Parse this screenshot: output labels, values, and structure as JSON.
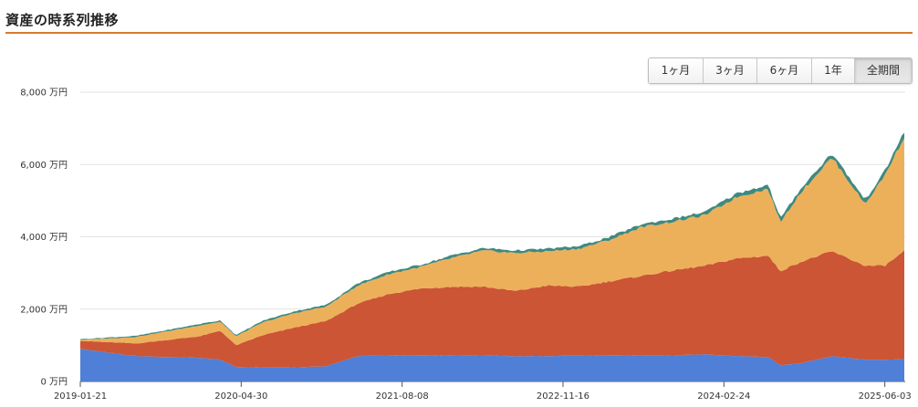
{
  "header": {
    "title": "資産の時系列推移"
  },
  "range_buttons": [
    {
      "label": "1ヶ月",
      "active": false
    },
    {
      "label": "3ヶ月",
      "active": false
    },
    {
      "label": "6ヶ月",
      "active": false
    },
    {
      "label": "1年",
      "active": false
    },
    {
      "label": "全期間",
      "active": true
    }
  ],
  "colors": {
    "accent_line": "#d97a2b",
    "series_blue": "#4f7fd6",
    "series_red": "#cc5535",
    "series_orange": "#edb05a",
    "series_teal": "#3f8a80"
  },
  "chart_data": {
    "type": "area",
    "stacked": true,
    "title": "",
    "xlabel": "",
    "ylabel": "",
    "y_unit": "万円",
    "ylim": [
      0,
      8000
    ],
    "yticks": [
      0,
      2000,
      4000,
      6000,
      8000
    ],
    "ytick_labels": [
      "0 万円",
      "2,000 万円",
      "4,000 万円",
      "6,000 万円",
      "8,000 万円"
    ],
    "xtick_labels": [
      "2019-01-21",
      "2020-04-30",
      "2021-08-08",
      "2022-11-16",
      "2024-02-24",
      "2025-06-03"
    ],
    "xlim": [
      "2019-01-21",
      "2025-08-01"
    ],
    "grid": true,
    "x": [
      "2019-01-21",
      "2019-07-01",
      "2020-01-01",
      "2020-03-01",
      "2020-04-15",
      "2020-07-01",
      "2020-10-01",
      "2021-01-01",
      "2021-04-01",
      "2021-07-01",
      "2021-10-01",
      "2022-01-01",
      "2022-04-01",
      "2022-07-01",
      "2022-10-01",
      "2023-01-01",
      "2023-04-01",
      "2023-07-01",
      "2023-10-01",
      "2024-01-01",
      "2024-04-01",
      "2024-07-01",
      "2024-08-05",
      "2024-10-01",
      "2025-01-01",
      "2025-04-07",
      "2025-06-03",
      "2025-08-01"
    ],
    "series": [
      {
        "color": "#4f7fd6",
        "values": [
          900,
          700,
          650,
          600,
          400,
          380,
          390,
          420,
          700,
          720,
          720,
          720,
          720,
          700,
          700,
          720,
          720,
          720,
          720,
          750,
          700,
          680,
          450,
          500,
          700,
          600,
          600,
          620
        ]
      },
      {
        "color": "#cc5535",
        "values": [
          220,
          350,
          600,
          800,
          600,
          900,
          1100,
          1250,
          1450,
          1700,
          1850,
          1900,
          1900,
          1800,
          1950,
          1900,
          2050,
          2200,
          2350,
          2450,
          2700,
          2800,
          2600,
          2800,
          2900,
          2600,
          2600,
          3000
        ]
      },
      {
        "color": "#edb05a",
        "values": [
          30,
          180,
          300,
          250,
          250,
          350,
          400,
          400,
          500,
          550,
          600,
          800,
          1000,
          1050,
          950,
          1050,
          1150,
          1350,
          1350,
          1400,
          1700,
          1850,
          1350,
          1900,
          2600,
          1700,
          2500,
          3200
        ]
      },
      {
        "color": "#3f8a80",
        "values": [
          20,
          30,
          40,
          40,
          30,
          50,
          50,
          50,
          60,
          60,
          60,
          70,
          70,
          70,
          70,
          70,
          80,
          80,
          80,
          90,
          100,
          110,
          100,
          110,
          120,
          120,
          120,
          150
        ]
      }
    ]
  }
}
